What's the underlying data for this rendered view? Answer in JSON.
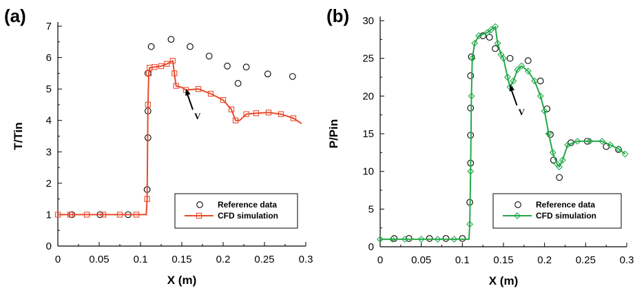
{
  "chart_data": [
    {
      "panel_label": "(a)",
      "type": "line",
      "xlabel": "X (m)",
      "ylabel": "T/Tin",
      "xlim": [
        0,
        0.3
      ],
      "ylim": [
        0,
        7
      ],
      "x_ticks": [
        0,
        0.05,
        0.1,
        0.15,
        0.2,
        0.25,
        0.3
      ],
      "x_tick_labels": [
        "0",
        "0.05",
        "0.1",
        "0.15",
        "0.2",
        "0.25",
        "0.3"
      ],
      "y_ticks": [
        0,
        1,
        2,
        3,
        4,
        5,
        6,
        7
      ],
      "y_tick_labels": [
        "0",
        "1",
        "2",
        "3",
        "4",
        "5",
        "6",
        "7"
      ],
      "grid": false,
      "legend_position": "bottom-right",
      "annotation": "V",
      "annotation_target": {
        "x": 0.155,
        "y": 5.0
      },
      "series": [
        {
          "name": "Reference data",
          "style": "scatter",
          "marker": "circle",
          "color": "#000000",
          "points": [
            [
              0.017,
              1.0
            ],
            [
              0.051,
              1.0
            ],
            [
              0.085,
              1.0
            ],
            [
              0.108,
              1.8
            ],
            [
              0.109,
              3.45
            ],
            [
              0.109,
              4.3
            ],
            [
              0.109,
              5.5
            ],
            [
              0.113,
              6.35
            ],
            [
              0.137,
              6.58
            ],
            [
              0.16,
              6.35
            ],
            [
              0.183,
              6.05
            ],
            [
              0.205,
              5.73
            ],
            [
              0.218,
              5.18
            ],
            [
              0.228,
              5.7
            ],
            [
              0.254,
              5.48
            ],
            [
              0.284,
              5.4
            ]
          ]
        },
        {
          "name": "CFD simulation",
          "style": "line",
          "marker": "square",
          "color": "#e8492a",
          "points": [
            [
              0.0,
              1.0
            ],
            [
              0.015,
              1.0
            ],
            [
              0.035,
              1.0
            ],
            [
              0.055,
              1.0
            ],
            [
              0.075,
              1.0
            ],
            [
              0.095,
              1.0
            ],
            [
              0.107,
              1.0
            ],
            [
              0.108,
              1.5
            ],
            [
              0.109,
              4.5
            ],
            [
              0.11,
              5.5
            ],
            [
              0.111,
              5.68
            ],
            [
              0.117,
              5.7
            ],
            [
              0.125,
              5.73
            ],
            [
              0.132,
              5.8
            ],
            [
              0.139,
              5.9
            ],
            [
              0.141,
              5.5
            ],
            [
              0.143,
              5.1
            ],
            [
              0.15,
              5.05
            ],
            [
              0.155,
              4.97
            ],
            [
              0.17,
              5.0
            ],
            [
              0.185,
              4.85
            ],
            [
              0.2,
              4.65
            ],
            [
              0.21,
              4.35
            ],
            [
              0.215,
              4.0
            ],
            [
              0.22,
              4.0
            ],
            [
              0.228,
              4.2
            ],
            [
              0.24,
              4.23
            ],
            [
              0.255,
              4.25
            ],
            [
              0.27,
              4.2
            ],
            [
              0.285,
              4.07
            ],
            [
              0.295,
              3.9
            ]
          ],
          "marker_points": [
            [
              0.0,
              1.0
            ],
            [
              0.015,
              1.0
            ],
            [
              0.035,
              1.0
            ],
            [
              0.055,
              1.0
            ],
            [
              0.075,
              1.0
            ],
            [
              0.095,
              1.0
            ],
            [
              0.108,
              1.5
            ],
            [
              0.109,
              4.5
            ],
            [
              0.11,
              5.5
            ],
            [
              0.111,
              5.68
            ],
            [
              0.117,
              5.7
            ],
            [
              0.125,
              5.73
            ],
            [
              0.132,
              5.8
            ],
            [
              0.139,
              5.9
            ],
            [
              0.141,
              5.5
            ],
            [
              0.143,
              5.1
            ],
            [
              0.155,
              4.97
            ],
            [
              0.17,
              5.0
            ],
            [
              0.185,
              4.85
            ],
            [
              0.2,
              4.65
            ],
            [
              0.21,
              4.35
            ],
            [
              0.215,
              4.0
            ],
            [
              0.228,
              4.2
            ],
            [
              0.24,
              4.23
            ],
            [
              0.255,
              4.25
            ],
            [
              0.27,
              4.2
            ],
            [
              0.285,
              4.07
            ]
          ]
        }
      ]
    },
    {
      "panel_label": "(b)",
      "type": "line",
      "xlabel": "X (m)",
      "ylabel": "P/Pin",
      "xlim": [
        0,
        0.3
      ],
      "ylim": [
        0,
        30
      ],
      "x_ticks": [
        0,
        0.05,
        0.1,
        0.15,
        0.2,
        0.25,
        0.3
      ],
      "x_tick_labels": [
        "0",
        "0.05",
        "0.1",
        "0.15",
        "0.2",
        "0.25",
        "0.3"
      ],
      "y_ticks": [
        0,
        5,
        10,
        15,
        20,
        25,
        30
      ],
      "y_tick_labels": [
        "0",
        "5",
        "10",
        "15",
        "20",
        "25",
        "30"
      ],
      "grid": false,
      "legend_position": "bottom-right",
      "annotation": "V",
      "annotation_target": {
        "x": 0.158,
        "y": 21.5
      },
      "series": [
        {
          "name": "Reference data",
          "style": "scatter",
          "marker": "circle",
          "color": "#000000",
          "points": [
            [
              0.017,
              1.1
            ],
            [
              0.035,
              1.1
            ],
            [
              0.06,
              1.1
            ],
            [
              0.08,
              1.1
            ],
            [
              0.1,
              1.1
            ],
            [
              0.109,
              5.9
            ],
            [
              0.11,
              11.1
            ],
            [
              0.11,
              14.8
            ],
            [
              0.11,
              18.4
            ],
            [
              0.11,
              22.7
            ],
            [
              0.111,
              25.2
            ],
            [
              0.125,
              28.0
            ],
            [
              0.133,
              27.8
            ],
            [
              0.14,
              26.3
            ],
            [
              0.158,
              25.0
            ],
            [
              0.18,
              24.7
            ],
            [
              0.195,
              22.0
            ],
            [
              0.203,
              18.3
            ],
            [
              0.207,
              14.9
            ],
            [
              0.211,
              11.5
            ],
            [
              0.218,
              9.2
            ],
            [
              0.232,
              13.8
            ],
            [
              0.252,
              14.0
            ],
            [
              0.275,
              13.3
            ],
            [
              0.29,
              12.9
            ]
          ]
        },
        {
          "name": "CFD simulation",
          "style": "line",
          "marker": "diamond",
          "color": "#21a847",
          "points": [
            [
              0.0,
              1.0
            ],
            [
              0.015,
              1.0
            ],
            [
              0.03,
              1.0
            ],
            [
              0.05,
              1.0
            ],
            [
              0.07,
              1.0
            ],
            [
              0.09,
              1.0
            ],
            [
              0.108,
              1.0
            ],
            [
              0.109,
              3.0
            ],
            [
              0.11,
              10.0
            ],
            [
              0.111,
              20.0
            ],
            [
              0.112,
              25.0
            ],
            [
              0.115,
              27.0
            ],
            [
              0.12,
              28.0
            ],
            [
              0.13,
              28.4
            ],
            [
              0.135,
              28.8
            ],
            [
              0.14,
              29.2
            ],
            [
              0.143,
              27.0
            ],
            [
              0.147,
              25.5
            ],
            [
              0.15,
              25.0
            ],
            [
              0.155,
              22.5
            ],
            [
              0.158,
              21.2
            ],
            [
              0.162,
              22.0
            ],
            [
              0.167,
              23.5
            ],
            [
              0.172,
              24.0
            ],
            [
              0.18,
              23.3
            ],
            [
              0.188,
              22.0
            ],
            [
              0.195,
              20.0
            ],
            [
              0.2,
              18.0
            ],
            [
              0.205,
              15.0
            ],
            [
              0.21,
              12.5
            ],
            [
              0.215,
              11.0
            ],
            [
              0.218,
              10.6
            ],
            [
              0.222,
              11.5
            ],
            [
              0.228,
              13.5
            ],
            [
              0.24,
              14.0
            ],
            [
              0.255,
              14.0
            ],
            [
              0.27,
              14.0
            ],
            [
              0.28,
              13.5
            ],
            [
              0.29,
              13.0
            ],
            [
              0.298,
              12.3
            ]
          ],
          "marker_points": [
            [
              0.0,
              1.0
            ],
            [
              0.015,
              1.0
            ],
            [
              0.03,
              1.0
            ],
            [
              0.05,
              1.0
            ],
            [
              0.07,
              1.0
            ],
            [
              0.09,
              1.0
            ],
            [
              0.109,
              3.0
            ],
            [
              0.11,
              10.0
            ],
            [
              0.111,
              20.0
            ],
            [
              0.112,
              25.0
            ],
            [
              0.115,
              27.0
            ],
            [
              0.12,
              28.0
            ],
            [
              0.13,
              28.4
            ],
            [
              0.135,
              28.8
            ],
            [
              0.14,
              29.2
            ],
            [
              0.143,
              27.0
            ],
            [
              0.147,
              25.5
            ],
            [
              0.15,
              25.0
            ],
            [
              0.155,
              22.5
            ],
            [
              0.158,
              21.2
            ],
            [
              0.162,
              22.0
            ],
            [
              0.167,
              23.5
            ],
            [
              0.172,
              24.0
            ],
            [
              0.18,
              23.3
            ],
            [
              0.188,
              22.0
            ],
            [
              0.195,
              20.0
            ],
            [
              0.2,
              18.0
            ],
            [
              0.205,
              15.0
            ],
            [
              0.21,
              12.5
            ],
            [
              0.215,
              11.0
            ],
            [
              0.218,
              10.6
            ],
            [
              0.222,
              11.5
            ],
            [
              0.228,
              13.5
            ],
            [
              0.24,
              14.0
            ],
            [
              0.255,
              14.0
            ],
            [
              0.27,
              14.0
            ],
            [
              0.28,
              13.5
            ],
            [
              0.29,
              13.0
            ],
            [
              0.298,
              12.3
            ]
          ]
        }
      ]
    }
  ]
}
